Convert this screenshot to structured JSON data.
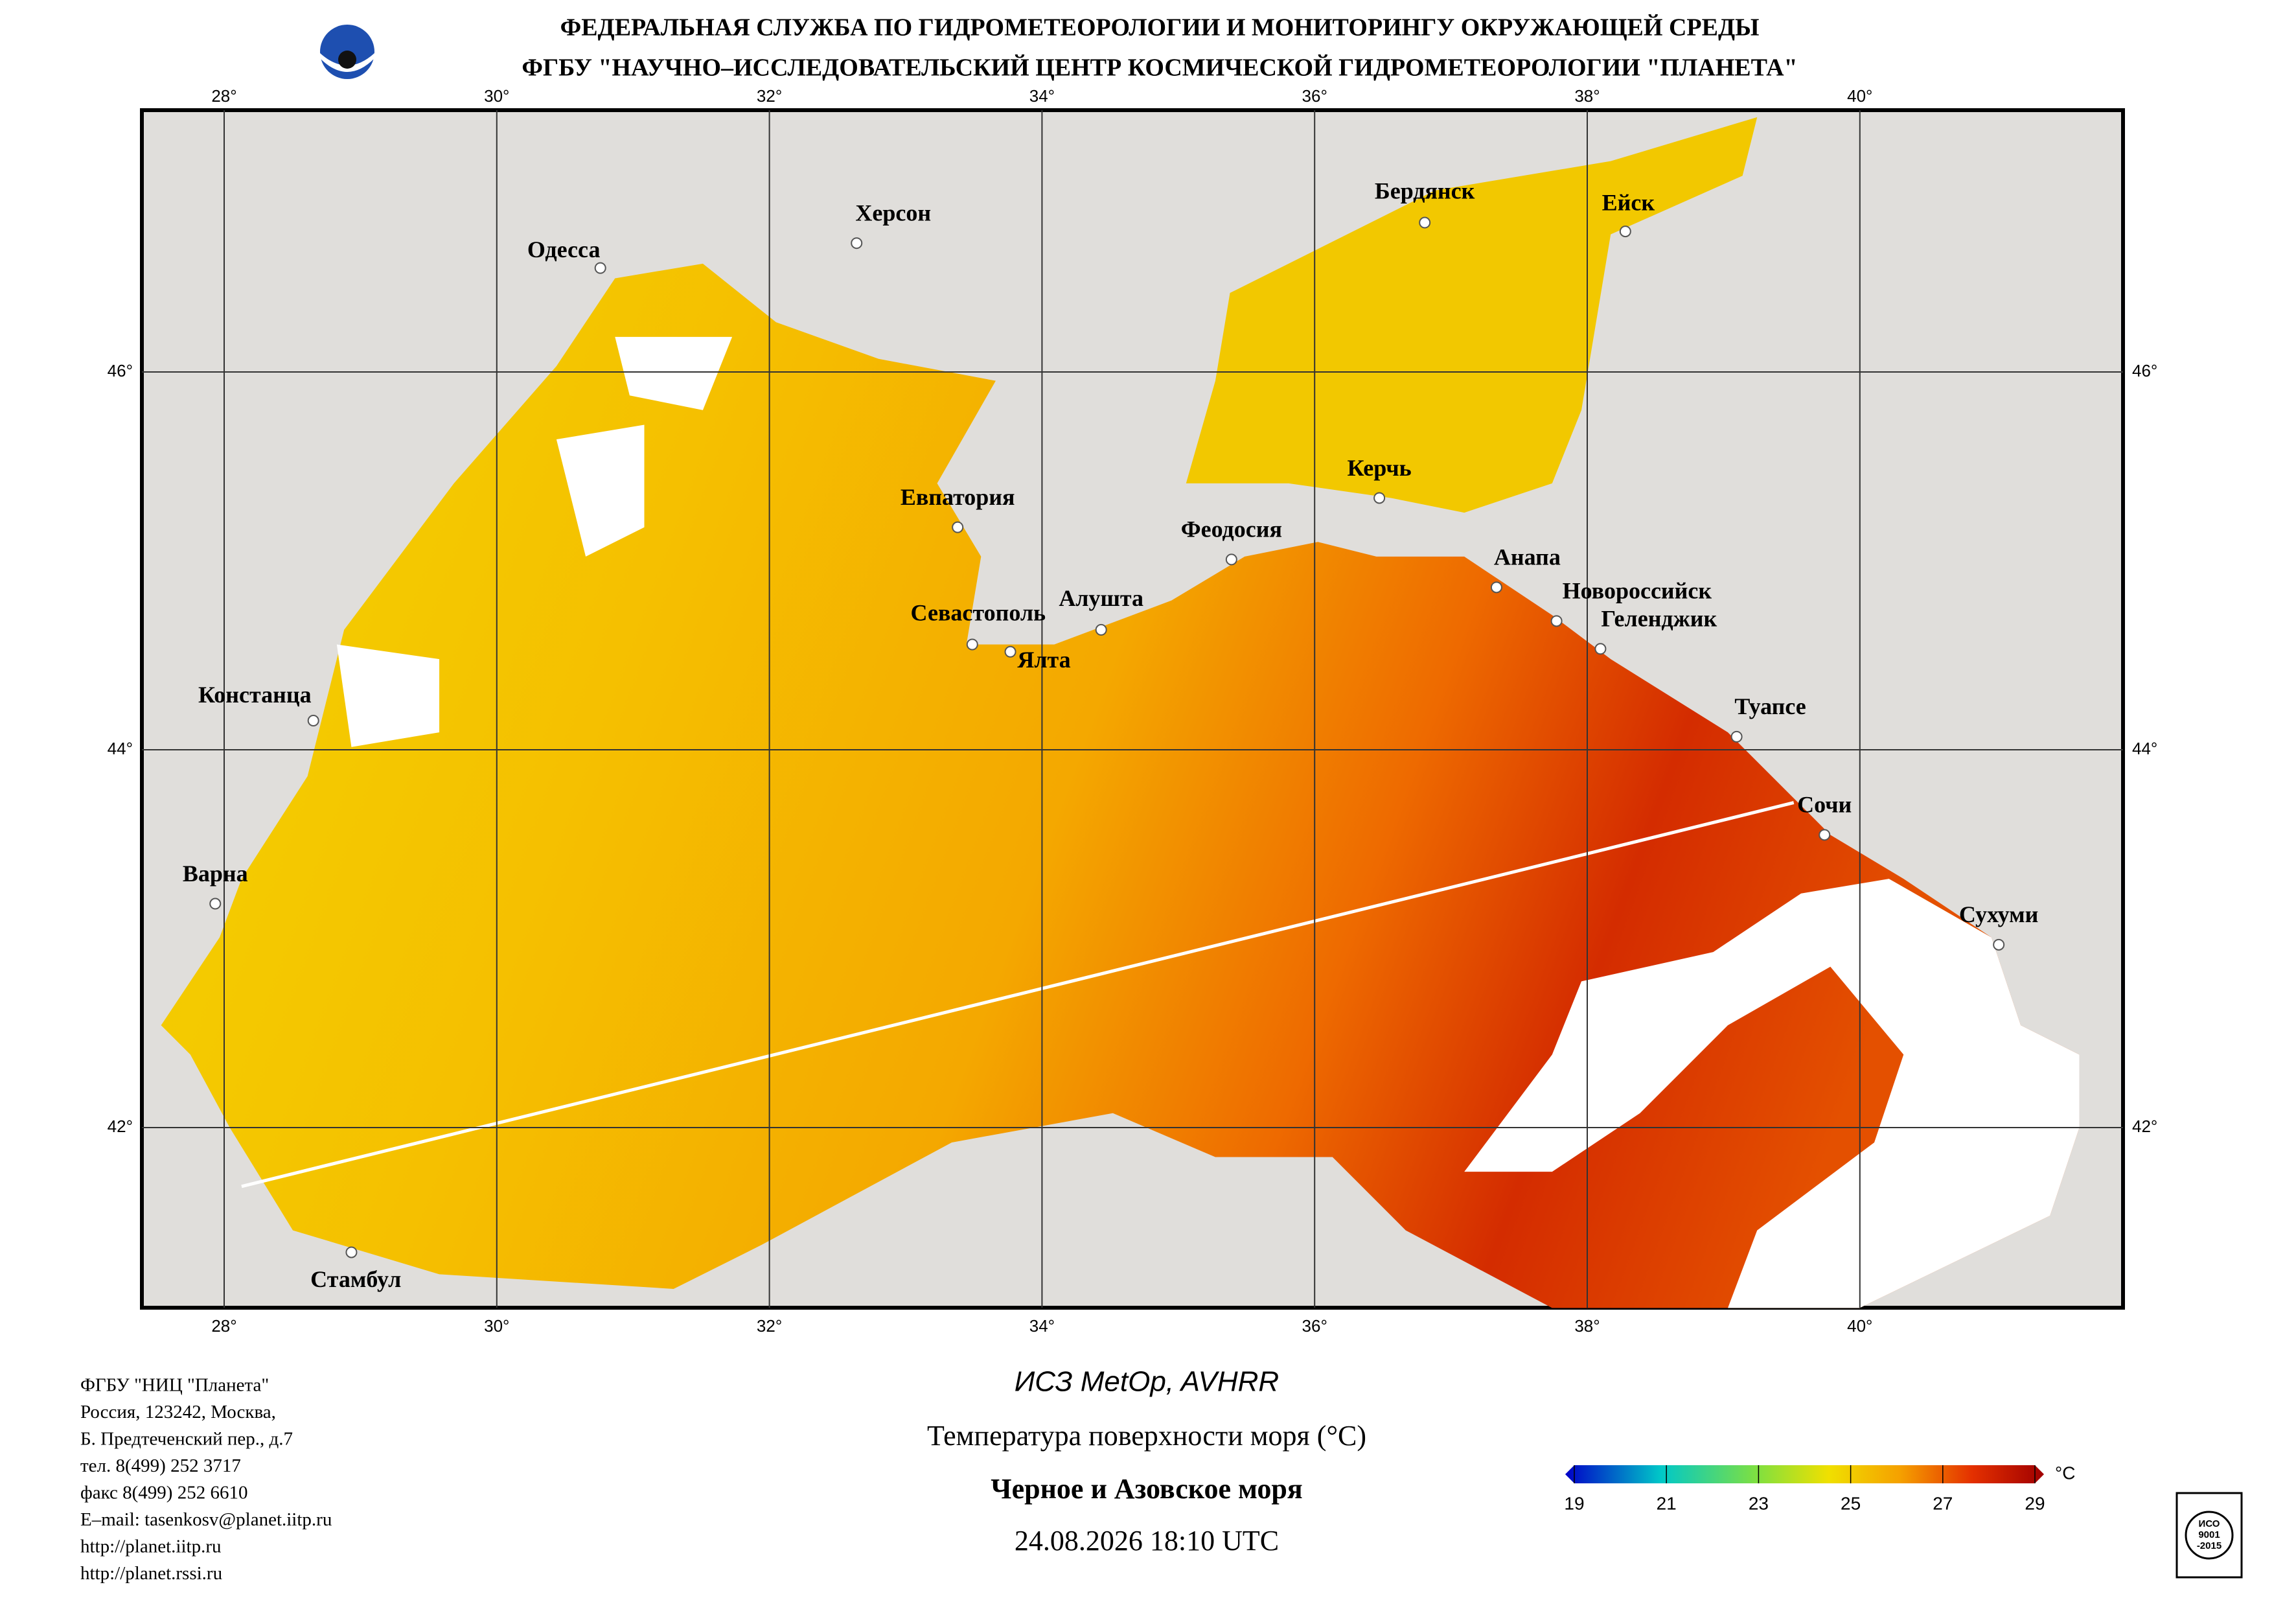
{
  "header": {
    "line1": "ФЕДЕРАЛЬНАЯ СЛУЖБА ПО ГИДРОМЕТЕОРОЛОГИИ И МОНИТОРИНГУ ОКРУЖАЮЩЕЙ СРЕДЫ",
    "line2": "ФГБУ \"НАУЧНО–ИССЛЕДОВАТЕЛЬСКИЙ ЦЕНТР КОСМИЧЕСКОЙ ГИДРОМЕТЕОРОЛОГИИ \"ПЛАНЕТА\""
  },
  "map": {
    "xticks": [
      {
        "value": 28,
        "label": "28°"
      },
      {
        "value": 30,
        "label": "30°"
      },
      {
        "value": 32,
        "label": "32°"
      },
      {
        "value": 34,
        "label": "34°"
      },
      {
        "value": 36,
        "label": "36°"
      },
      {
        "value": 38,
        "label": "38°"
      },
      {
        "value": 40,
        "label": "40°"
      }
    ],
    "yticks": [
      {
        "value": 46,
        "label": "46°"
      },
      {
        "value": 44,
        "label": "44°"
      },
      {
        "value": 42,
        "label": "42°"
      }
    ],
    "cities": [
      "Одесса",
      "Херсон",
      "Бердянск",
      "Ейск",
      "Евпатория",
      "Керчь",
      "Феодосия",
      "Анапа",
      "Новороссийск",
      "Геленджик",
      "Севастополь",
      "Алушта",
      "Ялта",
      "Констанца",
      "Туапсе",
      "Сочи",
      "Варна",
      "Сухуми",
      "Стамбул"
    ]
  },
  "footer": {
    "address": [
      "ФГБУ \"НИЦ \"Планета\"",
      "Россия, 123242, Москва,",
      "Б. Предтеченский пер., д.7",
      "тел. 8(499) 252 3717",
      "факс 8(499) 252 6610",
      "E–mail: tasenkosv@planet.iitp.ru",
      "http://planet.iitp.ru",
      "http://planet.rssi.ru"
    ],
    "satellite": "ИСЗ MetOp, AVHRR",
    "product": "Температура поверхности моря (°C)",
    "region": "Черное и Азовское моря",
    "datetime": "24.08.2026 18:10 UTC",
    "stamp": [
      "ИСО",
      "9001",
      "-2015"
    ]
  },
  "colorbar": {
    "ticks": [
      19,
      21,
      23,
      25,
      27,
      29
    ],
    "unit": "°C"
  }
}
